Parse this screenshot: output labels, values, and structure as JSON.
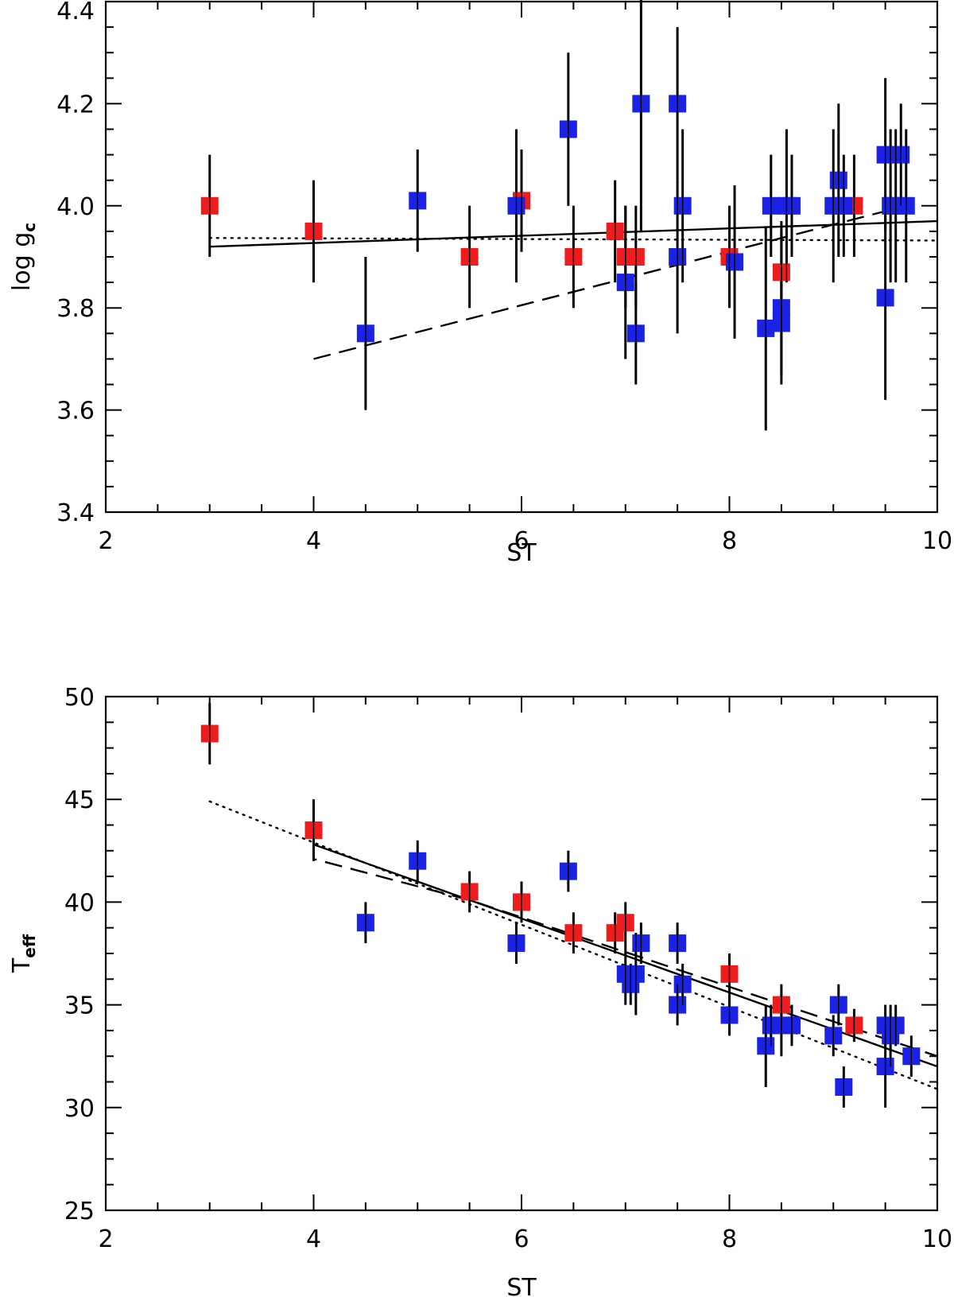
{
  "chart_data": [
    {
      "type": "scatter",
      "title": "",
      "xlabel": "ST",
      "ylabel_main": "log g",
      "ylabel_sub": "c",
      "xlim": [
        2,
        10
      ],
      "ylim": [
        3.4,
        4.4
      ],
      "xticks": [
        2,
        4,
        6,
        8,
        10
      ],
      "xtick_labels": [
        "2",
        "4",
        "6",
        "8",
        "10"
      ],
      "yticks": [
        3.4,
        3.6,
        3.8,
        4.0,
        4.2,
        4.4
      ],
      "ytick_labels": [
        "3.4",
        "3.6",
        "3.8",
        "4.0",
        "4.2",
        "4.4"
      ],
      "series": [
        {
          "name": "red",
          "color": "#ee1c1c",
          "points": [
            {
              "x": 3.0,
              "y": 4.0,
              "err": 0.1
            },
            {
              "x": 4.0,
              "y": 3.95,
              "err": 0.1
            },
            {
              "x": 5.5,
              "y": 3.9,
              "err": 0.1
            },
            {
              "x": 6.0,
              "y": 4.01,
              "err": 0.1
            },
            {
              "x": 6.5,
              "y": 3.9,
              "err": 0.1
            },
            {
              "x": 6.9,
              "y": 3.95,
              "err": 0.1
            },
            {
              "x": 7.0,
              "y": 3.9,
              "err": 0.1
            },
            {
              "x": 7.1,
              "y": 3.9,
              "err": 0.1
            },
            {
              "x": 8.0,
              "y": 3.9,
              "err": 0.1
            },
            {
              "x": 8.5,
              "y": 3.87,
              "err": 0.1
            },
            {
              "x": 9.2,
              "y": 4.0,
              "err": 0.1
            }
          ]
        },
        {
          "name": "blue",
          "color": "#1a22e6",
          "points": [
            {
              "x": 4.5,
              "y": 3.75,
              "err": 0.15
            },
            {
              "x": 5.0,
              "y": 4.01,
              "err": 0.1
            },
            {
              "x": 5.95,
              "y": 4.0,
              "err": 0.15
            },
            {
              "x": 6.45,
              "y": 4.15,
              "err": 0.15
            },
            {
              "x": 7.0,
              "y": 3.85,
              "err": 0.15
            },
            {
              "x": 7.1,
              "y": 3.75,
              "err": 0.1
            },
            {
              "x": 7.15,
              "y": 4.2,
              "err": 0.25
            },
            {
              "x": 7.5,
              "y": 4.2,
              "err": 0.15
            },
            {
              "x": 7.5,
              "y": 3.9,
              "err": 0.15
            },
            {
              "x": 7.55,
              "y": 4.0,
              "err": 0.15
            },
            {
              "x": 8.05,
              "y": 3.89,
              "err": 0.15
            },
            {
              "x": 8.35,
              "y": 3.76,
              "err": 0.2
            },
            {
              "x": 8.4,
              "y": 4.0,
              "err": 0.1
            },
            {
              "x": 8.5,
              "y": 3.8,
              "err": 0.15
            },
            {
              "x": 8.5,
              "y": 3.77,
              "err": 0.1
            },
            {
              "x": 8.55,
              "y": 4.0,
              "err": 0.15
            },
            {
              "x": 8.6,
              "y": 4.0,
              "err": 0.1
            },
            {
              "x": 9.0,
              "y": 4.0,
              "err": 0.15
            },
            {
              "x": 9.05,
              "y": 4.05,
              "err": 0.15
            },
            {
              "x": 9.1,
              "y": 4.0,
              "err": 0.1
            },
            {
              "x": 9.5,
              "y": 3.82,
              "err": 0.2
            },
            {
              "x": 9.5,
              "y": 4.1,
              "err": 0.15
            },
            {
              "x": 9.55,
              "y": 4.0,
              "err": 0.15
            },
            {
              "x": 9.6,
              "y": 4.0,
              "err": 0.15
            },
            {
              "x": 9.65,
              "y": 4.1,
              "err": 0.1
            },
            {
              "x": 9.7,
              "y": 4.0,
              "err": 0.15
            }
          ]
        }
      ],
      "fits": [
        {
          "style": "solid",
          "x": [
            3,
            10
          ],
          "y": [
            3.92,
            3.97
          ]
        },
        {
          "style": "dotted",
          "x": [
            3,
            10
          ],
          "y": [
            3.937,
            3.932
          ]
        },
        {
          "style": "dashed",
          "x": [
            4,
            9.7
          ],
          "y": [
            3.7,
            4.0
          ]
        }
      ]
    },
    {
      "type": "scatter",
      "title": "",
      "xlabel": "ST",
      "ylabel_main": "T",
      "ylabel_sub": "eff",
      "xlim": [
        2,
        10
      ],
      "ylim": [
        25,
        50
      ],
      "xticks": [
        2,
        4,
        6,
        8,
        10
      ],
      "xtick_labels": [
        "2",
        "4",
        "6",
        "8",
        "10"
      ],
      "yticks": [
        25,
        30,
        35,
        40,
        45,
        50
      ],
      "ytick_labels": [
        "25",
        "30",
        "35",
        "40",
        "45",
        "50"
      ],
      "series": [
        {
          "name": "red",
          "color": "#ee1c1c",
          "points": [
            {
              "x": 3.0,
              "y": 48.2,
              "err": 1.5
            },
            {
              "x": 4.0,
              "y": 43.5,
              "err": 1.5
            },
            {
              "x": 5.5,
              "y": 40.5,
              "err": 1.0
            },
            {
              "x": 6.0,
              "y": 40.0,
              "err": 1.0
            },
            {
              "x": 6.5,
              "y": 38.5,
              "err": 1.0
            },
            {
              "x": 6.9,
              "y": 38.5,
              "err": 1.0
            },
            {
              "x": 7.0,
              "y": 39.0,
              "err": 1.0
            },
            {
              "x": 8.0,
              "y": 36.5,
              "err": 1.0
            },
            {
              "x": 8.5,
              "y": 35.0,
              "err": 1.0
            },
            {
              "x": 9.2,
              "y": 34.0,
              "err": 0.8
            }
          ]
        },
        {
          "name": "blue",
          "color": "#1a22e6",
          "points": [
            {
              "x": 4.5,
              "y": 39.0,
              "err": 1.0
            },
            {
              "x": 5.0,
              "y": 42.0,
              "err": 1.0
            },
            {
              "x": 5.95,
              "y": 38.0,
              "err": 1.0
            },
            {
              "x": 6.45,
              "y": 41.5,
              "err": 1.0
            },
            {
              "x": 7.0,
              "y": 36.5,
              "err": 1.5
            },
            {
              "x": 7.05,
              "y": 36.0,
              "err": 1.0
            },
            {
              "x": 7.1,
              "y": 36.5,
              "err": 2.0
            },
            {
              "x": 7.15,
              "y": 38.0,
              "err": 1.0
            },
            {
              "x": 7.5,
              "y": 38.0,
              "err": 1.0
            },
            {
              "x": 7.5,
              "y": 35.0,
              "err": 1.0
            },
            {
              "x": 7.55,
              "y": 36.0,
              "err": 1.0
            },
            {
              "x": 8.0,
              "y": 34.5,
              "err": 1.0
            },
            {
              "x": 8.35,
              "y": 33.0,
              "err": 2.0
            },
            {
              "x": 8.4,
              "y": 34.0,
              "err": 1.0
            },
            {
              "x": 8.5,
              "y": 34.0,
              "err": 1.5
            },
            {
              "x": 8.6,
              "y": 34.0,
              "err": 1.0
            },
            {
              "x": 9.0,
              "y": 33.5,
              "err": 1.0
            },
            {
              "x": 9.05,
              "y": 35.0,
              "err": 1.0
            },
            {
              "x": 9.1,
              "y": 31.0,
              "err": 1.0
            },
            {
              "x": 9.5,
              "y": 34.0,
              "err": 1.0
            },
            {
              "x": 9.5,
              "y": 32.0,
              "err": 2.0
            },
            {
              "x": 9.55,
              "y": 33.5,
              "err": 1.5
            },
            {
              "x": 9.6,
              "y": 34.0,
              "err": 1.0
            },
            {
              "x": 9.75,
              "y": 32.5,
              "err": 1.0
            }
          ]
        }
      ],
      "fits": [
        {
          "style": "solid",
          "x": [
            4,
            10
          ],
          "y": [
            42.8,
            32.0
          ]
        },
        {
          "style": "dotted",
          "x": [
            3,
            10
          ],
          "y": [
            44.9,
            30.9
          ]
        },
        {
          "style": "dashed",
          "x": [
            4,
            4,
            5.5,
            10
          ],
          "y": [
            42.8,
            42.1,
            40.1,
            32.5
          ]
        }
      ]
    }
  ]
}
